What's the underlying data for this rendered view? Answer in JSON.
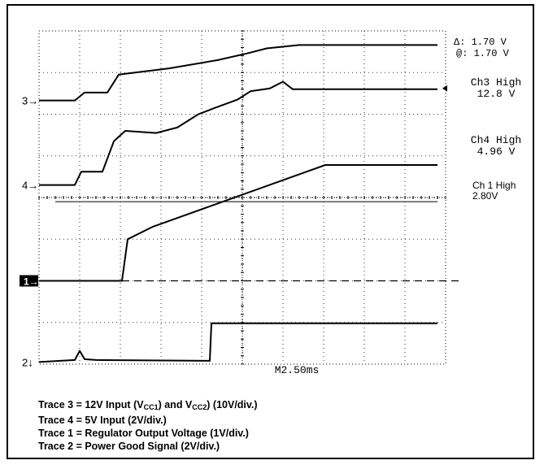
{
  "chart_data": {
    "type": "line",
    "title": "",
    "xlabel": "",
    "ylabel": "",
    "time_per_div_label": "M2.50ms",
    "time_per_div_ms": 2.5,
    "x_unit": "ms",
    "xlim": [
      0,
      25
    ],
    "ylim": [
      0,
      8
    ],
    "grid": true,
    "series": [
      {
        "name": "Trace 3 = 12V Input (VCC1) and VCC2) (10V/div.)",
        "marker": "3",
        "marker_level": 6.33,
        "points": [
          [
            0,
            6.33
          ],
          [
            2.2,
            6.33
          ],
          [
            2.8,
            6.52
          ],
          [
            4.2,
            6.52
          ],
          [
            4.9,
            6.95
          ],
          [
            8,
            7.1
          ],
          [
            11,
            7.3
          ],
          [
            12.8,
            7.46
          ],
          [
            14,
            7.58
          ],
          [
            16,
            7.66
          ],
          [
            24.5,
            7.66
          ]
        ]
      },
      {
        "name": "Trace 4 = 5V Input (2V/div.)",
        "marker": "4",
        "marker_level": 4.3,
        "points": [
          [
            0,
            4.3
          ],
          [
            2.2,
            4.3
          ],
          [
            2.6,
            4.62
          ],
          [
            3.9,
            4.62
          ],
          [
            4.6,
            5.35
          ],
          [
            5.3,
            5.6
          ],
          [
            7.2,
            5.55
          ],
          [
            8.5,
            5.68
          ],
          [
            9.8,
            6.0
          ],
          [
            10.8,
            6.15
          ],
          [
            12.2,
            6.35
          ],
          [
            13,
            6.55
          ],
          [
            14.2,
            6.62
          ],
          [
            15,
            6.78
          ],
          [
            15.6,
            6.6
          ],
          [
            24.5,
            6.6
          ]
        ]
      },
      {
        "name": "Trace 1 = Regulator Output Voltage (1V/div.)",
        "marker": "1",
        "marker_level": 2.0,
        "points": [
          [
            0,
            2.0
          ],
          [
            5.1,
            2.0
          ],
          [
            5.45,
            3.0
          ],
          [
            7.0,
            3.3
          ],
          [
            17.6,
            4.78
          ],
          [
            24.5,
            4.78
          ]
        ]
      },
      {
        "name": "Trace 2 = Power Good Signal (2V/div.)",
        "marker": "2",
        "marker_level": 0.05,
        "points": [
          [
            0,
            0.05
          ],
          [
            2.2,
            0.1
          ],
          [
            2.5,
            0.32
          ],
          [
            2.8,
            0.12
          ],
          [
            3.5,
            0.1
          ],
          [
            10.5,
            0.08
          ],
          [
            10.6,
            0.98
          ],
          [
            24.5,
            0.98
          ]
        ]
      }
    ],
    "cursor": {
      "level": 3.9,
      "xlim": [
        1,
        24.5
      ]
    },
    "ch1_reference": {
      "level": 2.0,
      "xlim": [
        5.1,
        25
      ]
    },
    "ch3_high_marker_level": 6.62,
    "readouts": {
      "delta": "Δ: 1.70 V",
      "at": "@: 1.70 V",
      "ch3_title": "Ch3 High",
      "ch3_value": "12.8 V",
      "ch4_title": "Ch4 High",
      "ch4_value": "4.96 V",
      "ch1_title": "Ch 1 High",
      "ch1_value": "2.80V"
    },
    "trace_markers": {
      "t3": "3",
      "t4": "4",
      "t1": "1",
      "t2": "2"
    }
  },
  "caption": {
    "line1_a": "Trace 3 = 12V Input (V",
    "line1_sub1": "CC1",
    "line1_b": ") and V",
    "line1_sub2": "CC2",
    "line1_c": ") (10V/div.)",
    "line2": "Trace 4 = 5V Input (2V/div.)",
    "line3": "Trace 1 = Regulator Output Voltage (1V/div.)",
    "line4": "Trace 2 = Power Good Signal (2V/div.)"
  }
}
